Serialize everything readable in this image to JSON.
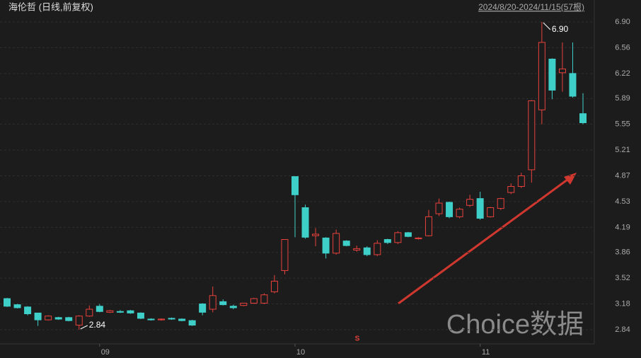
{
  "chart_data": {
    "type": "candlestick",
    "title": "海伦哲 (日线,前复权)",
    "subtitle": "2024/8/20-2024/11/15(57根)",
    "watermark": "Choice数据",
    "annotations": [
      {
        "text": "6.90",
        "index": 52
      },
      {
        "text": "2.84",
        "index": 7
      }
    ],
    "up_color": "#e8413c",
    "down_color": "#3ecfc9",
    "categories": [
      null,
      null,
      null,
      null,
      null,
      null,
      null,
      null,
      null,
      "09",
      null,
      null,
      null,
      null,
      null,
      null,
      null,
      null,
      null,
      null,
      null,
      null,
      null,
      null,
      null,
      null,
      null,
      null,
      "10",
      null,
      null,
      null,
      null,
      null,
      null,
      null,
      null,
      null,
      null,
      null,
      null,
      null,
      null,
      null,
      null,
      null,
      "11",
      null,
      null,
      null,
      null,
      null,
      null,
      null,
      null,
      null,
      null
    ],
    "open": [
      3.25,
      3.17,
      3.14,
      3.06,
      2.97,
      3.0,
      3.0,
      2.9,
      3.02,
      3.15,
      3.07,
      3.08,
      3.09,
      3.06,
      2.98,
      2.97,
      2.99,
      2.98,
      2.96,
      3.18,
      3.11,
      3.21,
      3.15,
      3.16,
      3.19,
      3.19,
      3.34,
      3.62,
      4.86,
      4.45,
      4.08,
      4.05,
      3.85,
      4.01,
      3.89,
      3.92,
      3.83,
      4.03,
      3.99,
      4.12,
      4.04,
      4.08,
      4.37,
      4.52,
      4.33,
      4.48,
      4.57,
      4.33,
      4.44,
      4.65,
      4.73,
      4.95,
      5.74,
      6.41,
      6.23,
      6.22,
      5.69
    ],
    "high": [
      3.26,
      3.18,
      3.15,
      3.06,
      3.03,
      3.01,
      3.01,
      3.03,
      3.16,
      3.18,
      3.1,
      3.1,
      3.1,
      3.07,
      2.99,
      2.99,
      3.0,
      2.99,
      2.97,
      3.19,
      3.41,
      3.24,
      3.17,
      3.19,
      3.26,
      3.32,
      3.56,
      4.03,
      4.86,
      4.49,
      4.18,
      4.06,
      4.16,
      4.02,
      3.95,
      3.94,
      4.02,
      4.04,
      4.14,
      4.13,
      4.06,
      4.42,
      4.57,
      4.53,
      4.45,
      4.62,
      4.66,
      4.46,
      4.58,
      4.77,
      4.91,
      5.87,
      6.9,
      6.42,
      6.63,
      6.63,
      5.96
    ],
    "low": [
      3.14,
      3.12,
      3.03,
      2.89,
      2.96,
      2.97,
      2.95,
      2.84,
      3.01,
      3.07,
      3.06,
      3.06,
      3.05,
      2.98,
      2.96,
      2.96,
      2.97,
      2.95,
      2.89,
      3.03,
      3.07,
      3.16,
      3.11,
      3.15,
      3.18,
      3.18,
      3.32,
      3.57,
      4.06,
      4.04,
      3.94,
      3.78,
      3.83,
      3.94,
      3.87,
      3.81,
      3.81,
      3.97,
      3.97,
      4.06,
      4.03,
      4.07,
      4.34,
      4.31,
      4.31,
      4.46,
      4.29,
      4.32,
      4.42,
      4.63,
      4.71,
      4.78,
      5.55,
      5.88,
      5.98,
      5.9,
      5.55
    ],
    "close": [
      3.15,
      3.13,
      3.05,
      2.97,
      3.02,
      2.98,
      2.96,
      3.02,
      3.11,
      3.08,
      3.09,
      3.07,
      3.06,
      2.99,
      2.97,
      2.98,
      2.98,
      2.96,
      2.9,
      3.07,
      3.29,
      3.17,
      3.13,
      3.19,
      3.25,
      3.3,
      3.48,
      4.03,
      4.62,
      4.06,
      4.1,
      3.85,
      4.11,
      3.95,
      3.91,
      3.83,
      3.98,
      3.99,
      4.12,
      4.07,
      4.05,
      4.33,
      4.51,
      4.33,
      4.43,
      4.56,
      4.31,
      4.45,
      4.57,
      4.73,
      4.87,
      5.86,
      6.63,
      6.0,
      6.28,
      5.92,
      5.57
    ],
    "ylim": [
      2.74,
      6.98
    ],
    "yticks": [
      2.84,
      3.18,
      3.52,
      3.86,
      4.19,
      4.53,
      4.87,
      5.21,
      5.55,
      5.89,
      6.22,
      6.56,
      {
        "value": 6.9,
        "label": "6.90"
      }
    ],
    "grid": true
  }
}
